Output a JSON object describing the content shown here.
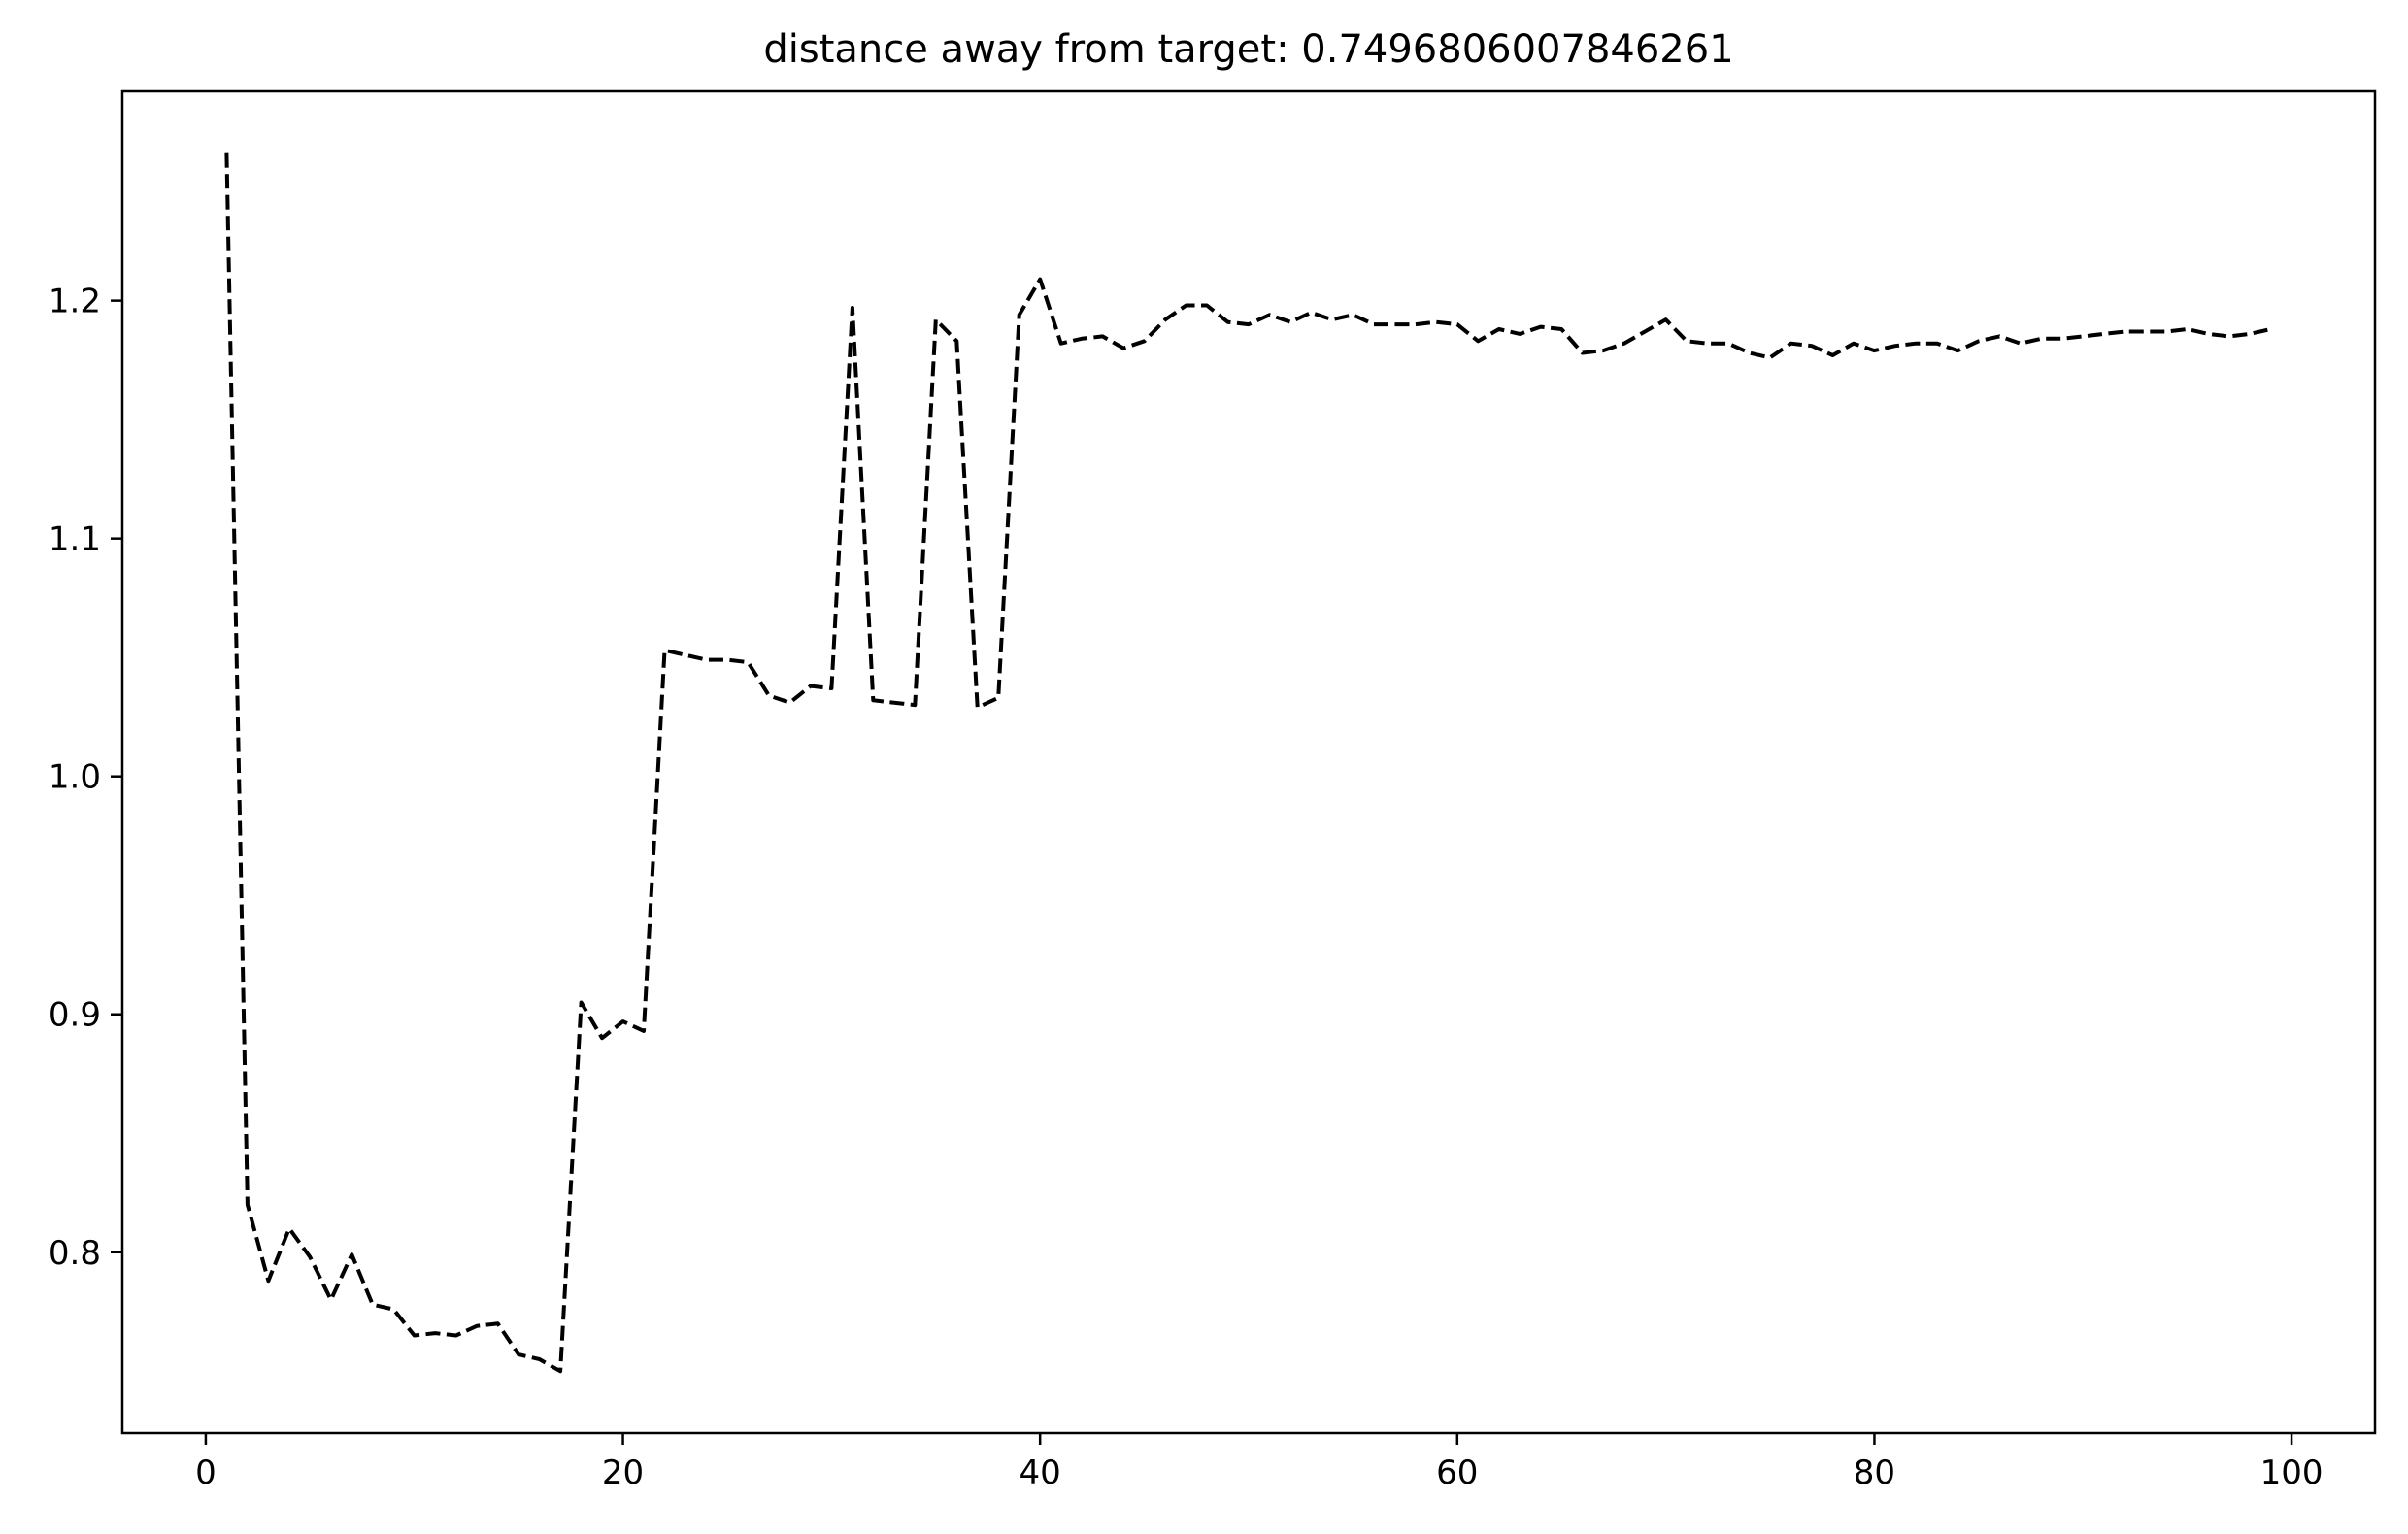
{
  "chart_data": {
    "type": "line",
    "title": "distance away from target: 0.7496806007846261",
    "xlabel": "",
    "ylabel": "",
    "xlim": [
      -4,
      104
    ],
    "ylim": [
      0.724,
      1.288
    ],
    "xticks": [
      0,
      20,
      40,
      60,
      80,
      100
    ],
    "xtick_labels": [
      "0",
      "20",
      "40",
      "60",
      "80",
      "100"
    ],
    "yticks": [
      0.8,
      0.9,
      1.0,
      1.1,
      1.2
    ],
    "ytick_labels": [
      "0.8",
      "0.9",
      "1.0",
      "1.1",
      "1.2"
    ],
    "grid": false,
    "line_color": "#000000",
    "line_style": "dashed",
    "series": [
      {
        "x": [
          1,
          2,
          3,
          4,
          5,
          6,
          7,
          8,
          9,
          10,
          11,
          12,
          13,
          14,
          15,
          16,
          17,
          18,
          19,
          20,
          21,
          22,
          23,
          24,
          25,
          26,
          27,
          28,
          29,
          30,
          31,
          32,
          33,
          34,
          35,
          36,
          37,
          38,
          39,
          40,
          41,
          42,
          43,
          44,
          45,
          46,
          47,
          48,
          49,
          50,
          51,
          52,
          53,
          54,
          55,
          56,
          57,
          58,
          59,
          60,
          61,
          62,
          63,
          64,
          65,
          66,
          67,
          68,
          69,
          70,
          71,
          72,
          73,
          74,
          75,
          76,
          77,
          78,
          79,
          80,
          81,
          82,
          83,
          84,
          85,
          86,
          87,
          88,
          89,
          90,
          91,
          92,
          93,
          94,
          95,
          96,
          97,
          98,
          99
        ],
        "y": [
          1.262,
          0.82,
          0.788,
          0.81,
          0.798,
          0.78,
          0.799,
          0.778,
          0.776,
          0.765,
          0.766,
          0.765,
          0.769,
          0.77,
          0.757,
          0.755,
          0.75,
          0.905,
          0.89,
          0.897,
          0.893,
          1.053,
          1.051,
          1.049,
          1.049,
          1.048,
          1.034,
          1.031,
          1.038,
          1.037,
          1.197,
          1.032,
          1.031,
          1.03,
          1.192,
          1.183,
          1.029,
          1.033,
          1.194,
          1.209,
          1.182,
          1.184,
          1.185,
          1.18,
          1.183,
          1.192,
          1.198,
          1.198,
          1.191,
          1.19,
          1.194,
          1.191,
          1.195,
          1.192,
          1.194,
          1.19,
          1.19,
          1.19,
          1.191,
          1.19,
          1.183,
          1.188,
          1.186,
          1.189,
          1.188,
          1.178,
          1.179,
          1.182,
          1.187,
          1.192,
          1.183,
          1.182,
          1.182,
          1.178,
          1.176,
          1.182,
          1.181,
          1.177,
          1.182,
          1.179,
          1.181,
          1.182,
          1.182,
          1.179,
          1.183,
          1.185,
          1.182,
          1.184,
          1.184,
          1.185,
          1.186,
          1.187,
          1.187,
          1.187,
          1.188,
          1.186,
          1.185,
          1.186,
          1.188
        ]
      }
    ]
  }
}
